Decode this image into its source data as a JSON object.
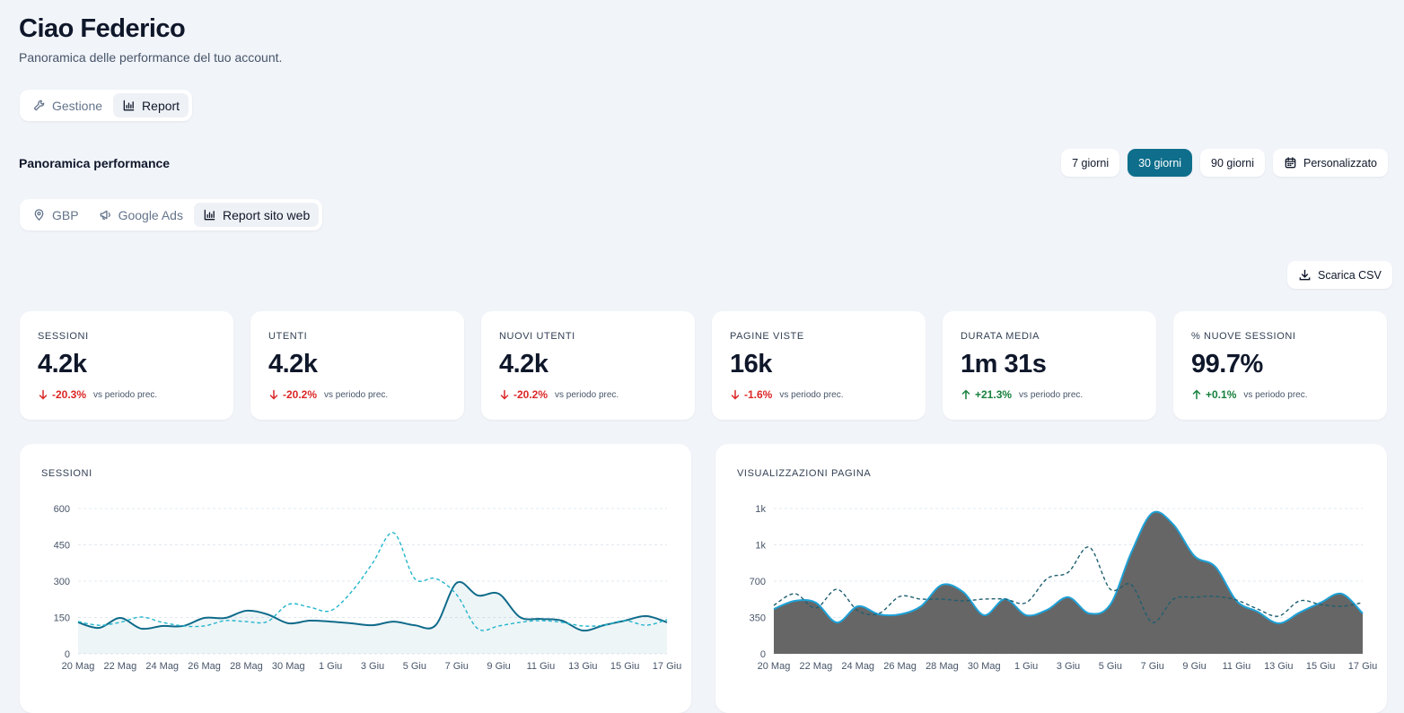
{
  "header": {
    "title": "Ciao Federico",
    "subtitle": "Panoramica delle performance del tuo account."
  },
  "tabs": [
    "Gestione",
    "Report"
  ],
  "section_title": "Panoramica performance",
  "ranges": [
    "7 giorni",
    "30 giorni",
    "90 giorni",
    "Personalizzato"
  ],
  "subtabs": [
    "GBP",
    "Google Ads",
    "Report sito web"
  ],
  "download": "Scarica CSV",
  "kpis": [
    {
      "label": "SESSIONI",
      "value": "4.2k",
      "delta": "-20.3%",
      "note": "vs periodo prec."
    },
    {
      "label": "UTENTI",
      "value": "4.2k",
      "delta": "-20.2%",
      "note": "vs periodo prec."
    },
    {
      "label": "NUOVI UTENTI",
      "value": "4.2k",
      "delta": "-20.2%",
      "note": "vs periodo prec."
    },
    {
      "label": "PAGINE VISTE",
      "value": "16k",
      "delta": "-1.6%",
      "note": "vs periodo prec."
    },
    {
      "label": "DURATA MEDIA",
      "value": "1m 31s",
      "delta": "+21.3%",
      "note": "vs periodo prec."
    },
    {
      "label": "% NUOVE SESSIONI",
      "value": "99.7%",
      "delta": "+0.1%",
      "note": "vs periodo prec."
    }
  ],
  "chart_data": [
    {
      "type": "line",
      "title": "SESSIONI",
      "categories": [
        "20 Mag",
        null,
        "22 Mag",
        null,
        "24 Mag",
        null,
        "26 Mag",
        null,
        "28 Mag",
        null,
        "30 Mag",
        null,
        "1 Giu",
        null,
        "3 Giu",
        null,
        "5 Giu",
        null,
        "7 Giu",
        null,
        "9 Giu",
        null,
        "11 Giu",
        null,
        "13 Giu",
        null,
        "15 Giu",
        null,
        "17 Giu"
      ],
      "ylim": [
        0,
        600
      ],
      "yticks": [
        0,
        150,
        300,
        450,
        600
      ],
      "grid": true,
      "series": [
        {
          "color": "#0f6b8a",
          "dashed": false,
          "fill": "#0f6b8a",
          "fill_opacity": 0.07,
          "values": [
            130,
            107,
            148,
            104,
            115,
            115,
            148,
            148,
            178,
            163,
            126,
            137,
            133,
            126,
            118,
            133,
            118,
            118,
            293,
            241,
            248,
            152,
            144,
            137,
            96,
            118,
            137,
            156,
            130
          ]
        },
        {
          "color": "#22b5cc",
          "dashed": true,
          "values": [
            133,
            118,
            130,
            152,
            130,
            115,
            115,
            137,
            133,
            133,
            204,
            193,
            178,
            256,
            374,
            500,
            311,
            311,
            244,
            104,
            115,
            130,
            137,
            130,
            115,
            118,
            137,
            118,
            141
          ]
        }
      ]
    },
    {
      "type": "area",
      "title": "VISUALIZZAZIONI PAGINA",
      "categories": [
        "20 Mag",
        null,
        "22 Mag",
        null,
        "24 Mag",
        null,
        "26 Mag",
        null,
        "28 Mag",
        null,
        "30 Mag",
        null,
        "1 Giu",
        null,
        "3 Giu",
        null,
        "5 Giu",
        null,
        "7 Giu",
        null,
        "9 Giu",
        null,
        "11 Giu",
        null,
        "13 Giu",
        null,
        "15 Giu",
        null,
        "17 Giu"
      ],
      "ylim": [
        0,
        1400
      ],
      "yticks": [
        0,
        350,
        700,
        {
          "value": 1050,
          "label": "1k"
        },
        {
          "value": 1400,
          "label": "1k"
        }
      ],
      "grid": true,
      "series": [
        {
          "color": "#1ea2d8",
          "dashed": false,
          "fill": "#666666",
          "fill_opacity": 1,
          "values": [
            432,
            510,
            493,
            302,
            458,
            380,
            380,
            458,
            665,
            596,
            372,
            527,
            372,
            424,
            545,
            389,
            475,
            977,
            1357,
            1245,
            942,
            838,
            510,
            406,
            294,
            398,
            493,
            579,
            389
          ]
        },
        {
          "color": "#1f5f70",
          "dashed": true,
          "values": [
            467,
            579,
            441,
            622,
            415,
            389,
            553,
            527,
            527,
            510,
            527,
            527,
            493,
            726,
            786,
            1028,
            622,
            665,
            302,
            527,
            545,
            553,
            518,
            432,
            363,
            510,
            475,
            458,
            493
          ]
        }
      ]
    }
  ]
}
